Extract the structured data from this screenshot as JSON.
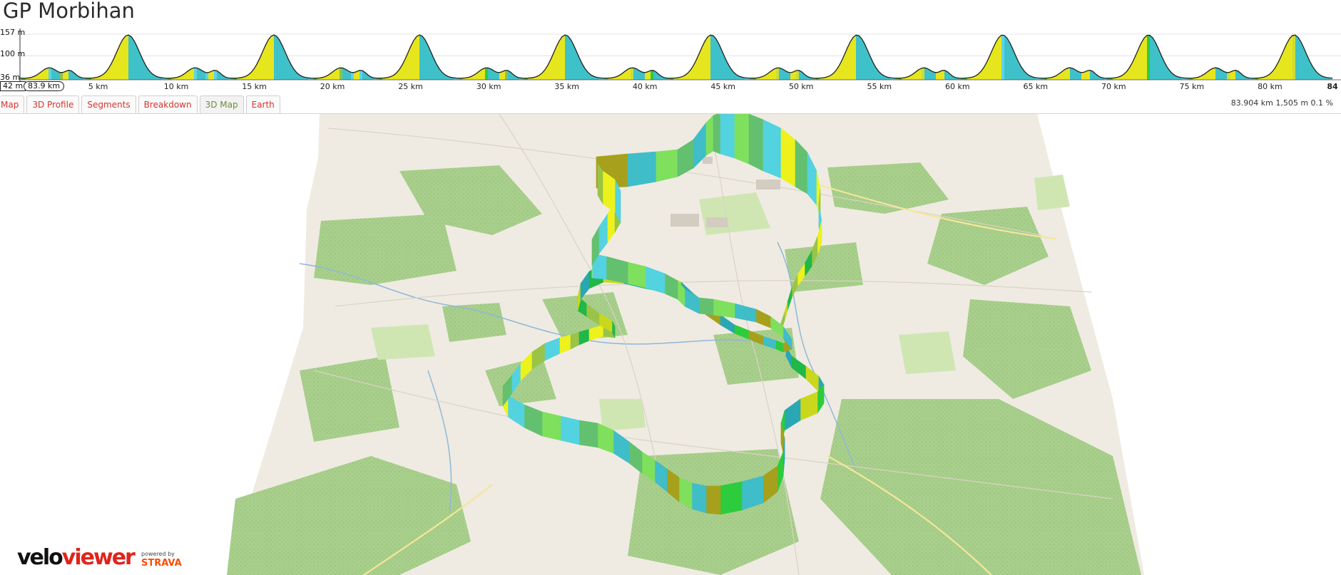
{
  "page": {
    "title": "GP Morbihan"
  },
  "profile": {
    "y_labels": {
      "max": "157 m",
      "mid": "100 m",
      "min": "36 m"
    },
    "x_labels": [
      "5 km",
      "10 km",
      "15 km",
      "20 km",
      "25 km",
      "30 km",
      "35 km",
      "40 km",
      "45 km",
      "50 km",
      "55 km",
      "60 km",
      "65 km",
      "70 km",
      "75 km",
      "80 km"
    ],
    "x_end_label": "84",
    "selection_start": "42 m",
    "selection_distance": "83.9 km"
  },
  "tabs": [
    {
      "label": "Map",
      "active": false
    },
    {
      "label": "3D Profile",
      "active": false
    },
    {
      "label": "Segments",
      "active": false
    },
    {
      "label": "Breakdown",
      "active": false
    },
    {
      "label": "3D Map",
      "active": true
    },
    {
      "label": "Earth",
      "active": false
    }
  ],
  "route_stats": "83.904 km 1,505 m 0.1 %",
  "branding": {
    "logo_part1": "velo",
    "logo_part2": "viewer",
    "powered_by": "powered by",
    "strava": "STRAVA"
  },
  "colors": {
    "tab_text": "#d8332b",
    "tab_active_text": "#6b8f3a",
    "map_base": "#f0ede5",
    "forest": "#a9d38e",
    "forest_dark": "#8fc27a",
    "strava": "#fc4c02"
  }
}
